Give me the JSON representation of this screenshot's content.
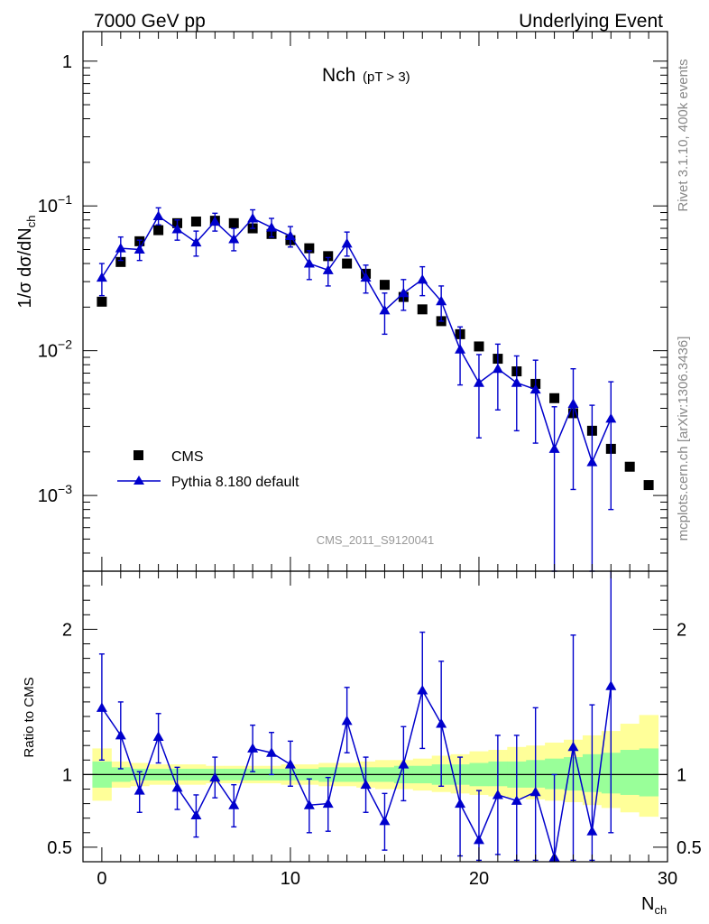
{
  "header": {
    "left": "7000 GeV pp",
    "right": "Underlying Event",
    "title_main": "Nch",
    "title_sub": "(pT >  3)",
    "side_top": "Rivet 3.1.10,  400k events",
    "side_bottom": "mcplots.cern.ch [arXiv:1306.3436]",
    "watermark": "CMS_2011_S9120041"
  },
  "chart_data": {
    "type": "scatter",
    "x_title_base": "N",
    "x_title_sub": "ch",
    "xlim": [
      -1,
      30
    ],
    "x_ticks": [
      0,
      10,
      20,
      30
    ],
    "main": {
      "ylabel_prefix": "1/σ dσ/dN",
      "ylabel_sub": "ch",
      "yscale": "log",
      "ylim": [
        0.0003,
        1.6
      ],
      "y_tick_labels": [
        {
          "value": 1,
          "base": "1",
          "exp": ""
        },
        {
          "value": 0.1,
          "base": "10",
          "exp": "−1"
        },
        {
          "value": 0.01,
          "base": "10",
          "exp": "−2"
        },
        {
          "value": 0.001,
          "base": "10",
          "exp": "−3"
        }
      ],
      "series": [
        {
          "name": "CMS",
          "marker": "square",
          "color": "#000000",
          "x": [
            0,
            1,
            2,
            3,
            4,
            5,
            6,
            7,
            8,
            9,
            10,
            11,
            12,
            13,
            14,
            15,
            16,
            17,
            18,
            19,
            20,
            21,
            22,
            23,
            24,
            25,
            26,
            27,
            28,
            29
          ],
          "y": [
            0.0218,
            0.041,
            0.057,
            0.068,
            0.076,
            0.078,
            0.079,
            0.076,
            0.07,
            0.064,
            0.058,
            0.051,
            0.045,
            0.04,
            0.034,
            0.0285,
            0.0235,
            0.0193,
            0.016,
            0.013,
            0.0107,
            0.0088,
            0.0072,
            0.0059,
            0.0047,
            0.0037,
            0.0028,
            0.0021,
            0.00158,
            0.00118
          ]
        },
        {
          "name": "Pythia 8.180 default",
          "marker": "triangle",
          "color": "#0000cc",
          "x": [
            0,
            1,
            2,
            3,
            4,
            5,
            6,
            7,
            8,
            9,
            10,
            11,
            12,
            13,
            14,
            15,
            16,
            17,
            18,
            19,
            20,
            21,
            22,
            23,
            24,
            25,
            26,
            27
          ],
          "y": [
            0.032,
            0.051,
            0.05,
            0.085,
            0.069,
            0.056,
            0.078,
            0.059,
            0.082,
            0.071,
            0.062,
            0.04,
            0.036,
            0.055,
            0.032,
            0.019,
            0.025,
            0.031,
            0.022,
            0.0102,
            0.006,
            0.0075,
            0.006,
            0.0054,
            0.0021,
            0.0043,
            0.0017,
            0.0034
          ],
          "err_up": [
            0.04,
            0.061,
            0.058,
            0.097,
            0.08,
            0.067,
            0.089,
            0.07,
            0.094,
            0.082,
            0.072,
            0.049,
            0.044,
            0.066,
            0.039,
            0.025,
            0.031,
            0.038,
            0.028,
            0.0146,
            0.0094,
            0.0111,
            0.0092,
            0.0086,
            0.0041,
            0.0075,
            0.0042,
            0.0061
          ],
          "err_down": [
            0.024,
            0.042,
            0.042,
            0.074,
            0.058,
            0.045,
            0.067,
            0.049,
            0.07,
            0.061,
            0.052,
            0.031,
            0.028,
            0.045,
            0.025,
            0.013,
            0.019,
            0.024,
            0.016,
            0.0058,
            0.0025,
            0.0039,
            0.0028,
            0.0023,
            0.0003,
            0.0011,
            0.0003,
            0.0008
          ]
        }
      ]
    },
    "ratio": {
      "ylabel": "Ratio to CMS",
      "ylim": [
        0.4,
        2.4
      ],
      "y_ticks": [
        0.5,
        1,
        2
      ],
      "y_tick_labels": [
        "0.5",
        "1",
        "2"
      ],
      "band_yellow_color": "#ffff99",
      "band_green_color": "#99ff99",
      "band_x": [
        -0.5,
        0.5,
        1.5,
        2.5,
        3.5,
        4.5,
        5.5,
        6.5,
        7.5,
        8.5,
        9.5,
        10.5,
        11.5,
        12.5,
        13.5,
        14.5,
        15.5,
        16.5,
        17.5,
        18.5,
        19.5,
        20.5,
        21.5,
        22.5,
        23.5,
        24.5,
        25.5,
        26.5,
        27.5,
        28.5,
        29.5
      ],
      "band_yellow_lo": [
        0.82,
        0.91,
        0.92,
        0.93,
        0.93,
        0.93,
        0.94,
        0.94,
        0.94,
        0.94,
        0.93,
        0.93,
        0.92,
        0.92,
        0.91,
        0.9,
        0.9,
        0.89,
        0.88,
        0.87,
        0.86,
        0.85,
        0.84,
        0.83,
        0.82,
        0.81,
        0.79,
        0.77,
        0.74,
        0.71
      ],
      "band_yellow_hi": [
        1.18,
        1.09,
        1.08,
        1.07,
        1.07,
        1.07,
        1.06,
        1.06,
        1.06,
        1.06,
        1.07,
        1.07,
        1.08,
        1.08,
        1.09,
        1.1,
        1.1,
        1.11,
        1.13,
        1.14,
        1.16,
        1.17,
        1.19,
        1.2,
        1.22,
        1.24,
        1.27,
        1.3,
        1.35,
        1.41
      ],
      "band_green_lo": [
        0.91,
        0.95,
        0.96,
        0.96,
        0.96,
        0.96,
        0.96,
        0.96,
        0.96,
        0.96,
        0.96,
        0.96,
        0.95,
        0.95,
        0.95,
        0.95,
        0.94,
        0.94,
        0.93,
        0.93,
        0.92,
        0.92,
        0.91,
        0.91,
        0.9,
        0.89,
        0.88,
        0.87,
        0.86,
        0.85
      ],
      "band_green_hi": [
        1.09,
        1.05,
        1.04,
        1.04,
        1.04,
        1.04,
        1.04,
        1.04,
        1.04,
        1.04,
        1.04,
        1.04,
        1.05,
        1.05,
        1.05,
        1.05,
        1.06,
        1.06,
        1.07,
        1.07,
        1.08,
        1.09,
        1.09,
        1.1,
        1.11,
        1.12,
        1.14,
        1.15,
        1.17,
        1.18
      ],
      "series": [
        {
          "name": "Pythia 8.180 default",
          "color": "#0000cc",
          "x": [
            0,
            1,
            2,
            3,
            4,
            5,
            6,
            7,
            8,
            9,
            10,
            11,
            12,
            13,
            14,
            15,
            16,
            17,
            18,
            19,
            20,
            21,
            22,
            23,
            24,
            25,
            26,
            27
          ],
          "y": [
            1.46,
            1.27,
            0.89,
            1.26,
            0.91,
            0.72,
            0.98,
            0.79,
            1.18,
            1.15,
            1.07,
            0.79,
            0.8,
            1.37,
            0.93,
            0.68,
            1.07,
            1.58,
            1.35,
            0.8,
            0.55,
            0.86,
            0.82,
            0.88,
            0.43,
            1.19,
            0.61,
            1.61
          ],
          "err_up": [
            1.83,
            1.5,
            1.02,
            1.42,
            1.05,
            0.86,
            1.12,
            0.93,
            1.34,
            1.29,
            1.23,
            0.97,
            0.98,
            1.6,
            1.12,
            0.87,
            1.33,
            1.98,
            1.78,
            1.12,
            0.89,
            1.27,
            1.27,
            1.46,
            1.0,
            1.96,
            1.48,
            2.5
          ],
          "err_down": [
            1.1,
            1.04,
            0.74,
            1.08,
            0.76,
            0.57,
            0.84,
            0.64,
            1.02,
            1.0,
            0.92,
            0.6,
            0.61,
            1.15,
            0.74,
            0.48,
            0.82,
            1.18,
            0.92,
            0.44,
            0.41,
            0.45,
            0.41,
            0.41,
            0.41,
            0.41,
            0.41,
            0.6
          ]
        }
      ]
    }
  }
}
